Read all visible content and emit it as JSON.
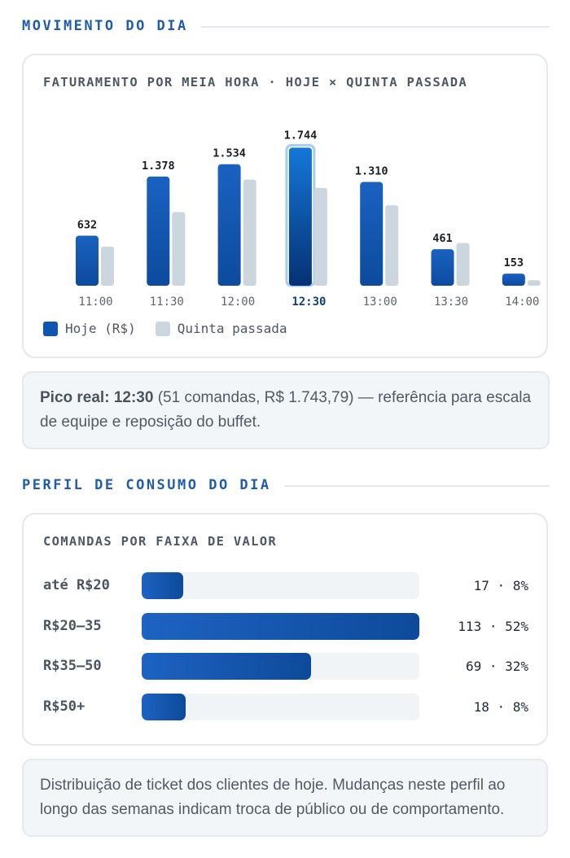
{
  "section1": {
    "title": "MOVIMENTO DO DIA"
  },
  "chart_card": {
    "title": "FATURAMENTO POR MEIA HORA · HOJE × QUINTA PASSADA"
  },
  "chart_data": {
    "type": "bar",
    "title": "FATURAMENTO POR MEIA HORA · HOJE × QUINTA PASSADA",
    "categories": [
      "11:00",
      "11:30",
      "12:00",
      "12:30",
      "13:00",
      "13:30",
      "14:00"
    ],
    "highlight_category": "12:30",
    "series": [
      {
        "name": "Hoje (R$)",
        "values": [
          632,
          1378,
          1534,
          1744,
          1310,
          461,
          153
        ],
        "labels": [
          "632",
          "1.378",
          "1.534",
          "1.744",
          "1.310",
          "461",
          "153"
        ],
        "color": "#0f56b3"
      },
      {
        "name": "Quinta passada",
        "values": [
          495,
          930,
          1340,
          1235,
          1015,
          540,
          70
        ],
        "color": "#cbd6df"
      }
    ],
    "ylim": [
      0,
      1850
    ],
    "grid": false,
    "legend_position": "bottom-left"
  },
  "legend": {
    "today": "Hoje (R$)",
    "last": "Quinta passada"
  },
  "note1": {
    "bold": "Pico real: 12:30",
    "text": " (51 comandas, R$ 1.743,79) — referência para escala de equipe e reposição do buffet."
  },
  "section2": {
    "title": "PERFIL DE CONSUMO DO DIA"
  },
  "dist_card": {
    "title": "COMANDAS POR FAIXA DE VALOR",
    "rows": [
      {
        "label": "até R$20",
        "value": "17 · 8%",
        "count": 17
      },
      {
        "label": "R$20–35",
        "value": "113 · 52%",
        "count": 113
      },
      {
        "label": "R$35–50",
        "value": "69 · 32%",
        "count": 69
      },
      {
        "label": "R$50+",
        "value": "18 · 8%",
        "count": 18
      }
    ]
  },
  "note2": {
    "text": "Distribuição de ticket dos clientes de hoje. Mudanças neste perfil ao longo das semanas indicam troca de público ou de comportamento."
  },
  "colors": {
    "accent": "#1f5bb0",
    "today": "#0f56b3",
    "last": "#cbd6df",
    "highlight_outline": "#a9cdf0"
  }
}
